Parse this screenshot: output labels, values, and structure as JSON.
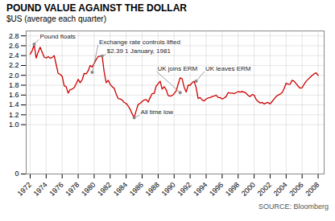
{
  "chart_data": {
    "type": "line",
    "title": "POUND VALUE AGAINST THE DOLLAR",
    "subtitle": "$US (average each quarter)",
    "source": "SOURCE: Bloomberg",
    "color": "#cc0000",
    "grid": true,
    "xlim": [
      1971.5,
      2008.75
    ],
    "xticks": [
      1972,
      1974,
      1976,
      1978,
      1980,
      1982,
      1984,
      1986,
      1988,
      1990,
      1992,
      1994,
      1996,
      1998,
      2000,
      2002,
      2004,
      2006,
      2008
    ],
    "ylim": [
      0,
      2.9
    ],
    "yticks": [
      0,
      {
        "value": 1.0,
        "label": "1.0"
      },
      1.2,
      1.4,
      1.6,
      1.8,
      {
        "value": 2.0,
        "label": "2.0"
      },
      2.2,
      2.4,
      2.6,
      2.8
    ],
    "annotations": [
      {
        "text": "Pound floats",
        "xy": [
          1972.5,
          2.63
        ],
        "xytext": [
          1973.1,
          2.73
        ]
      },
      {
        "text": "Exchange rate controls lifted",
        "xy": [
          1979.75,
          2.06
        ],
        "xytext": [
          1980.5,
          2.62
        ]
      },
      {
        "text": "$2.39 1 January, 1981",
        "xy": [
          1981.0,
          2.39
        ],
        "xytext": [
          1981.5,
          2.43
        ]
      },
      {
        "text": "UK joins ERM",
        "xy": [
          1990.75,
          1.65
        ],
        "xytext": [
          1987.8,
          2.08
        ]
      },
      {
        "text": "UK leaves ERM",
        "xy": [
          1992.75,
          1.88
        ],
        "xytext": [
          1993.8,
          2.08
        ]
      },
      {
        "text": "All time low",
        "xy": [
          1985.0,
          1.14
        ],
        "xytext": [
          1985.7,
          1.19
        ]
      }
    ],
    "x": [
      1972.0,
      1972.25,
      1972.5,
      1972.75,
      1973.0,
      1973.25,
      1973.5,
      1973.75,
      1974.0,
      1974.25,
      1974.5,
      1974.75,
      1975.0,
      1975.25,
      1975.5,
      1975.75,
      1976.0,
      1976.25,
      1976.5,
      1976.75,
      1977.0,
      1977.25,
      1977.5,
      1977.75,
      1978.0,
      1978.25,
      1978.5,
      1978.75,
      1979.0,
      1979.25,
      1979.5,
      1979.75,
      1980.0,
      1980.25,
      1980.5,
      1980.75,
      1981.0,
      1981.25,
      1981.5,
      1981.75,
      1982.0,
      1982.25,
      1982.5,
      1982.75,
      1983.0,
      1983.25,
      1983.5,
      1983.75,
      1984.0,
      1984.25,
      1984.5,
      1984.75,
      1985.0,
      1985.25,
      1985.5,
      1985.75,
      1986.0,
      1986.25,
      1986.5,
      1986.75,
      1987.0,
      1987.25,
      1987.5,
      1987.75,
      1988.0,
      1988.25,
      1988.5,
      1988.75,
      1989.0,
      1989.25,
      1989.5,
      1989.75,
      1990.0,
      1990.25,
      1990.5,
      1990.75,
      1991.0,
      1991.25,
      1991.5,
      1991.75,
      1992.0,
      1992.25,
      1992.5,
      1992.75,
      1993.0,
      1993.25,
      1993.5,
      1993.75,
      1994.0,
      1994.25,
      1994.5,
      1994.75,
      1995.0,
      1995.25,
      1995.5,
      1995.75,
      1996.0,
      1996.25,
      1996.5,
      1996.75,
      1997.0,
      1997.25,
      1997.5,
      1997.75,
      1998.0,
      1998.25,
      1998.5,
      1998.75,
      1999.0,
      1999.25,
      1999.5,
      1999.75,
      2000.0,
      2000.25,
      2000.5,
      2000.75,
      2001.0,
      2001.25,
      2001.5,
      2001.75,
      2002.0,
      2002.25,
      2002.5,
      2002.75,
      2003.0,
      2003.25,
      2003.5,
      2003.75,
      2004.0,
      2004.25,
      2004.5,
      2004.75,
      2005.0,
      2005.25,
      2005.5,
      2005.75,
      2006.0,
      2006.25,
      2006.5,
      2006.75,
      2007.0,
      2007.25,
      2007.5,
      2007.75,
      2008.0
    ],
    "values": [
      2.43,
      2.5,
      2.62,
      2.35,
      2.47,
      2.57,
      2.47,
      2.37,
      2.35,
      2.38,
      2.35,
      2.36,
      2.4,
      2.22,
      2.04,
      2.02,
      1.98,
      1.79,
      1.77,
      1.64,
      1.71,
      1.72,
      1.75,
      1.83,
      1.92,
      1.85,
      1.91,
      2.04,
      2.03,
      2.09,
      2.2,
      2.17,
      2.24,
      2.32,
      2.38,
      2.39,
      2.39,
      2.07,
      1.85,
      1.9,
      1.82,
      1.77,
      1.74,
      1.62,
      1.53,
      1.52,
      1.5,
      1.45,
      1.43,
      1.38,
      1.31,
      1.22,
      1.14,
      1.28,
      1.41,
      1.43,
      1.47,
      1.5,
      1.51,
      1.46,
      1.55,
      1.63,
      1.63,
      1.78,
      1.83,
      1.88,
      1.72,
      1.77,
      1.71,
      1.59,
      1.58,
      1.59,
      1.63,
      1.68,
      1.82,
      1.95,
      1.93,
      1.76,
      1.66,
      1.8,
      1.8,
      1.85,
      1.88,
      1.75,
      1.53,
      1.55,
      1.5,
      1.48,
      1.52,
      1.54,
      1.55,
      1.57,
      1.58,
      1.6,
      1.55,
      1.55,
      1.52,
      1.54,
      1.57,
      1.65,
      1.64,
      1.64,
      1.63,
      1.65,
      1.67,
      1.66,
      1.67,
      1.66,
      1.64,
      1.59,
      1.57,
      1.61,
      1.6,
      1.51,
      1.47,
      1.44,
      1.45,
      1.42,
      1.44,
      1.45,
      1.42,
      1.47,
      1.52,
      1.57,
      1.6,
      1.62,
      1.65,
      1.73,
      1.84,
      1.82,
      1.82,
      1.9,
      1.88,
      1.83,
      1.78,
      1.74,
      1.75,
      1.82,
      1.88,
      1.92,
      1.96,
      2.0,
      2.03,
      2.05,
      2.0
    ]
  }
}
